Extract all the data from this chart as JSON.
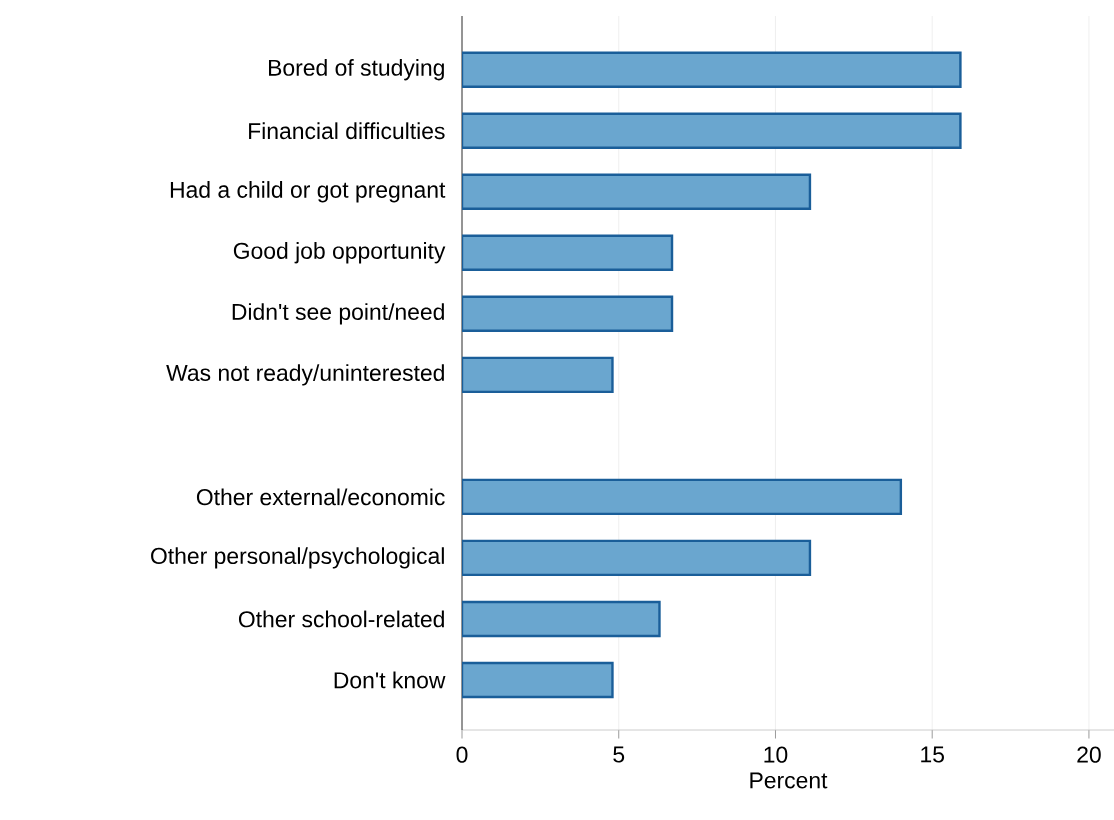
{
  "chart_data": {
    "type": "bar",
    "orientation": "horizontal",
    "xlabel": "Percent",
    "categories": [
      "Bored of studying",
      "Financial difficulties",
      "Had a child or got pregnant",
      "Good job opportunity",
      "Didn't see point/need",
      "Was not ready/uninterested",
      null,
      "Other external/economic",
      "Other personal/psychological",
      "Other school-related",
      "Don't know"
    ],
    "values": [
      15.9,
      15.9,
      11.1,
      6.7,
      6.7,
      4.8,
      null,
      14.0,
      11.1,
      6.3,
      4.8
    ],
    "color": "#6aa6cf",
    "xlim": [
      0,
      20.8
    ],
    "xticks": [
      0,
      5,
      10,
      15,
      20
    ],
    "grid": "x"
  }
}
